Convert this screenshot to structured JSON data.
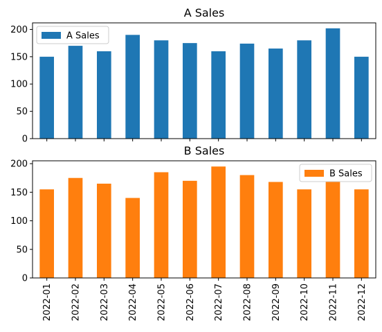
{
  "chart_data": [
    {
      "type": "bar",
      "title": "A Sales",
      "categories": [
        "2022-01",
        "2022-02",
        "2022-03",
        "2022-04",
        "2022-05",
        "2022-06",
        "2022-07",
        "2022-08",
        "2022-09",
        "2022-10",
        "2022-11",
        "2022-12"
      ],
      "series": [
        {
          "name": "A Sales",
          "color": "#1f77b4",
          "values": [
            150,
            170,
            160,
            190,
            180,
            175,
            160,
            174,
            165,
            180,
            202,
            150
          ]
        }
      ],
      "xlabel": "",
      "ylabel": "",
      "ylim": [
        0,
        212
      ],
      "yticks": [
        0,
        50,
        100,
        150,
        200
      ],
      "show_x_tick_labels": false,
      "grid": false,
      "legend": "upper-left"
    },
    {
      "type": "bar",
      "title": "B Sales",
      "categories": [
        "2022-01",
        "2022-02",
        "2022-03",
        "2022-04",
        "2022-05",
        "2022-06",
        "2022-07",
        "2022-08",
        "2022-09",
        "2022-10",
        "2022-11",
        "2022-12"
      ],
      "series": [
        {
          "name": "B Sales",
          "color": "#ff7f0e",
          "values": [
            155,
            175,
            165,
            140,
            185,
            170,
            195,
            180,
            168,
            155,
            168,
            155
          ]
        }
      ],
      "xlabel": "",
      "ylabel": "",
      "ylim": [
        0,
        205
      ],
      "yticks": [
        0,
        50,
        100,
        150,
        200
      ],
      "show_x_tick_labels": true,
      "grid": false,
      "legend": "upper-right"
    }
  ]
}
